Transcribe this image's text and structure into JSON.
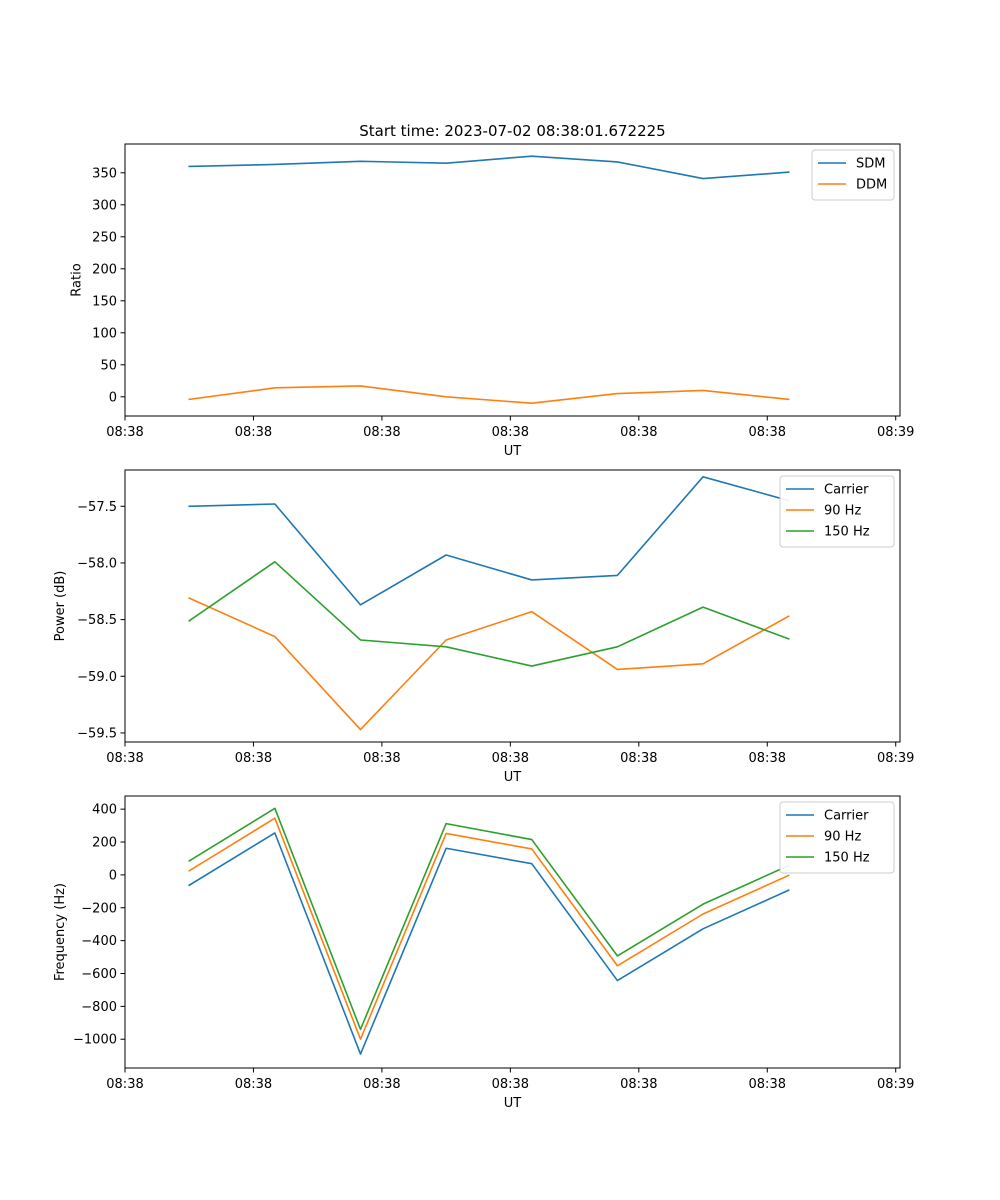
{
  "figure": {
    "title": "Start time: 2023-07-02 08:38:01.672225"
  },
  "chart_data": [
    {
      "type": "line",
      "title": "Start time: 2023-07-02 08:38:01.672225",
      "xlabel": "UT",
      "ylabel": "Ratio",
      "xlim": [
        -0.75,
        8.3
      ],
      "ylim": [
        -30,
        395
      ],
      "x": [
        0,
        1,
        2,
        3,
        4,
        5,
        6,
        7
      ],
      "xticks": [
        -0.75,
        0.75,
        2.25,
        3.75,
        5.25,
        6.75,
        8.25
      ],
      "xtick_labels": [
        "08:38",
        "08:38",
        "08:38",
        "08:38",
        "08:38",
        "08:38",
        "08:39"
      ],
      "yticks": [
        0,
        50,
        100,
        150,
        200,
        250,
        300,
        350
      ],
      "ytick_labels": [
        "0",
        "50",
        "100",
        "150",
        "200",
        "250",
        "300",
        "350"
      ],
      "legend_position": "top-right",
      "series": [
        {
          "name": "SDM",
          "color": "#1f77b4",
          "values": [
            360,
            363,
            368,
            365,
            376,
            367,
            341,
            351
          ]
        },
        {
          "name": "DDM",
          "color": "#ff7f0e",
          "values": [
            -4,
            14,
            17,
            0,
            -10,
            5,
            10,
            -4
          ]
        }
      ]
    },
    {
      "type": "line",
      "title": "",
      "xlabel": "UT",
      "ylabel": "Power (dB)",
      "xlim": [
        -0.75,
        8.3
      ],
      "ylim": [
        -59.58,
        -57.18
      ],
      "x": [
        0,
        1,
        2,
        3,
        4,
        5,
        6,
        7
      ],
      "xticks": [
        -0.75,
        0.75,
        2.25,
        3.75,
        5.25,
        6.75,
        8.25
      ],
      "xtick_labels": [
        "08:38",
        "08:38",
        "08:38",
        "08:38",
        "08:38",
        "08:38",
        "08:39"
      ],
      "yticks": [
        -59.5,
        -59.0,
        -58.5,
        -58.0,
        -57.5
      ],
      "ytick_labels": [
        "−59.5",
        "−59.0",
        "−58.5",
        "−58.0",
        "−57.5"
      ],
      "legend_position": "top-right",
      "series": [
        {
          "name": "Carrier",
          "color": "#1f77b4",
          "values": [
            -57.5,
            -57.48,
            -58.37,
            -57.93,
            -58.15,
            -58.11,
            -57.24,
            -57.45
          ]
        },
        {
          "name": "90 Hz",
          "color": "#ff7f0e",
          "values": [
            -58.31,
            -58.65,
            -59.47,
            -58.68,
            -58.43,
            -58.94,
            -58.89,
            -58.47
          ]
        },
        {
          "name": "150 Hz",
          "color": "#2ca02c",
          "values": [
            -58.51,
            -57.99,
            -58.68,
            -58.74,
            -58.91,
            -58.74,
            -58.39,
            -58.67
          ]
        }
      ]
    },
    {
      "type": "line",
      "title": "",
      "xlabel": "UT",
      "ylabel": "Frequency (Hz)",
      "xlim": [
        -0.75,
        8.3
      ],
      "ylim": [
        -1175,
        480
      ],
      "x": [
        0,
        1,
        2,
        3,
        4,
        5,
        6,
        7
      ],
      "xticks": [
        -0.75,
        0.75,
        2.25,
        3.75,
        5.25,
        6.75,
        8.25
      ],
      "xtick_labels": [
        "08:38",
        "08:38",
        "08:38",
        "08:38",
        "08:38",
        "08:38",
        "08:39"
      ],
      "yticks": [
        -1000,
        -800,
        -600,
        -400,
        -200,
        0,
        200,
        400
      ],
      "ytick_labels": [
        "−1000",
        "−800",
        "−600",
        "−400",
        "−200",
        "0",
        "200",
        "400"
      ],
      "legend_position": "top-right",
      "series": [
        {
          "name": "Carrier",
          "color": "#1f77b4",
          "values": [
            -63,
            255,
            -1090,
            162,
            68,
            -643,
            -328,
            -93
          ]
        },
        {
          "name": "90 Hz",
          "color": "#ff7f0e",
          "values": [
            25,
            345,
            -1000,
            252,
            158,
            -553,
            -238,
            -3
          ]
        },
        {
          "name": "150 Hz",
          "color": "#2ca02c",
          "values": [
            85,
            405,
            -940,
            312,
            215,
            -493,
            -178,
            57
          ]
        }
      ]
    }
  ]
}
